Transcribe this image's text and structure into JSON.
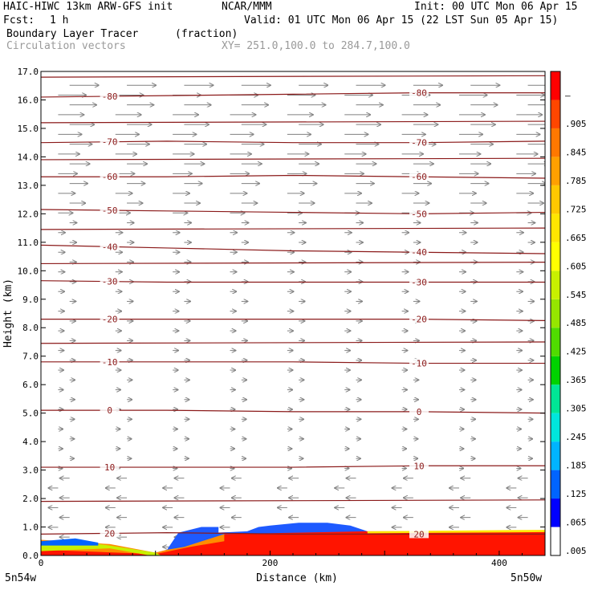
{
  "header": {
    "model": "HAIC-HIWC 13km ARW-GFS init",
    "org": "NCAR/MMM",
    "init": "Init: 00 UTC Mon 06 Apr 15",
    "fcst_label": "Fcst:",
    "fcst_value": "1 h",
    "valid": "Valid: 01 UTC Mon 06 Apr 15 (22 LST Sun 05 Apr 15)",
    "field_name": "Boundary Layer Tracer",
    "field_units": "(fraction)",
    "overlay_name": "Circulation vectors",
    "xy_range": "XY= 251.0,100.0 to 284.7,100.0"
  },
  "colors": {
    "contour": "#8b1a1a",
    "vector": "#808080",
    "frame": "#000000"
  },
  "chart_data": {
    "type": "heatmap",
    "title": "Boundary Layer Tracer",
    "units": "(fraction)",
    "xlabel": "Distance (km)",
    "ylabel": "Height (km)",
    "xlim": [
      0,
      440
    ],
    "ylim": [
      0,
      17
    ],
    "x_ticks": [
      0,
      200,
      400
    ],
    "y_ticks": [
      "0.0",
      "1.0",
      "2.0",
      "3.0",
      "4.0",
      "5.0",
      "6.0",
      "7.0",
      "8.0",
      "9.0",
      "10.0",
      "11.0",
      "12.0",
      "13.0",
      "14.0",
      "15.0",
      "16.0",
      "17.0"
    ],
    "x_left_label": "5n54w",
    "x_right_label": "5n50w",
    "colorbar_labels": [
      ".005",
      ".065",
      ".125",
      ".185",
      ".245",
      ".305",
      ".365",
      ".425",
      ".485",
      ".545",
      ".605",
      ".665",
      ".725",
      ".785",
      ".845",
      ".905",
      "–"
    ],
    "colorbar_colors": [
      "#ffffff",
      "#0000ff",
      "#0064ff",
      "#00b4ff",
      "#00e6dc",
      "#00e696",
      "#00d200",
      "#50dc00",
      "#96e600",
      "#c8f000",
      "#ffff00",
      "#ffe600",
      "#ffc800",
      "#ffa000",
      "#ff7800",
      "#ff4600",
      "#ff0000"
    ],
    "temperature_contours": [
      {
        "label": "-80",
        "y": [
          16.1,
          16.15,
          16.2,
          16.25,
          16.25
        ]
      },
      {
        "label": "-70",
        "y": [
          14.5,
          14.55,
          14.5,
          14.5,
          14.55
        ]
      },
      {
        "label": "-60",
        "y": [
          13.3,
          13.3,
          13.35,
          13.3,
          13.25
        ]
      },
      {
        "label": "-50",
        "y": [
          12.15,
          12.1,
          12.05,
          12.0,
          12.05
        ]
      },
      {
        "label": "-40",
        "y": [
          10.9,
          10.8,
          10.7,
          10.65,
          10.6
        ]
      },
      {
        "label": "-30",
        "y": [
          9.65,
          9.6,
          9.6,
          9.6,
          9.6
        ]
      },
      {
        "label": "-20",
        "y": [
          8.3,
          8.3,
          8.3,
          8.3,
          8.25
        ]
      },
      {
        "label": "-10",
        "y": [
          6.8,
          6.8,
          6.8,
          6.75,
          6.75
        ]
      },
      {
        "label": "0",
        "y": [
          5.1,
          5.1,
          5.05,
          5.05,
          5.0
        ]
      },
      {
        "label": "10",
        "y": [
          3.1,
          3.1,
          3.1,
          3.15,
          3.15
        ]
      },
      {
        "label": "20",
        "y": [
          0.75,
          0.8,
          0.75,
          0.75,
          0.75
        ]
      }
    ],
    "unlabeled_contour_y": [
      16.8,
      15.2,
      13.9,
      11.45,
      10.25,
      7.45,
      1.9
    ],
    "contour_x": [
      0,
      110,
      220,
      330,
      440
    ],
    "terrain_profile": {
      "x": [
        0,
        100,
        120,
        150,
        200,
        250,
        285,
        300,
        440
      ],
      "y": [
        0.3,
        0.1,
        0.3,
        0.8,
        0.85,
        0.85,
        0.85,
        0.85,
        0.85
      ]
    }
  }
}
